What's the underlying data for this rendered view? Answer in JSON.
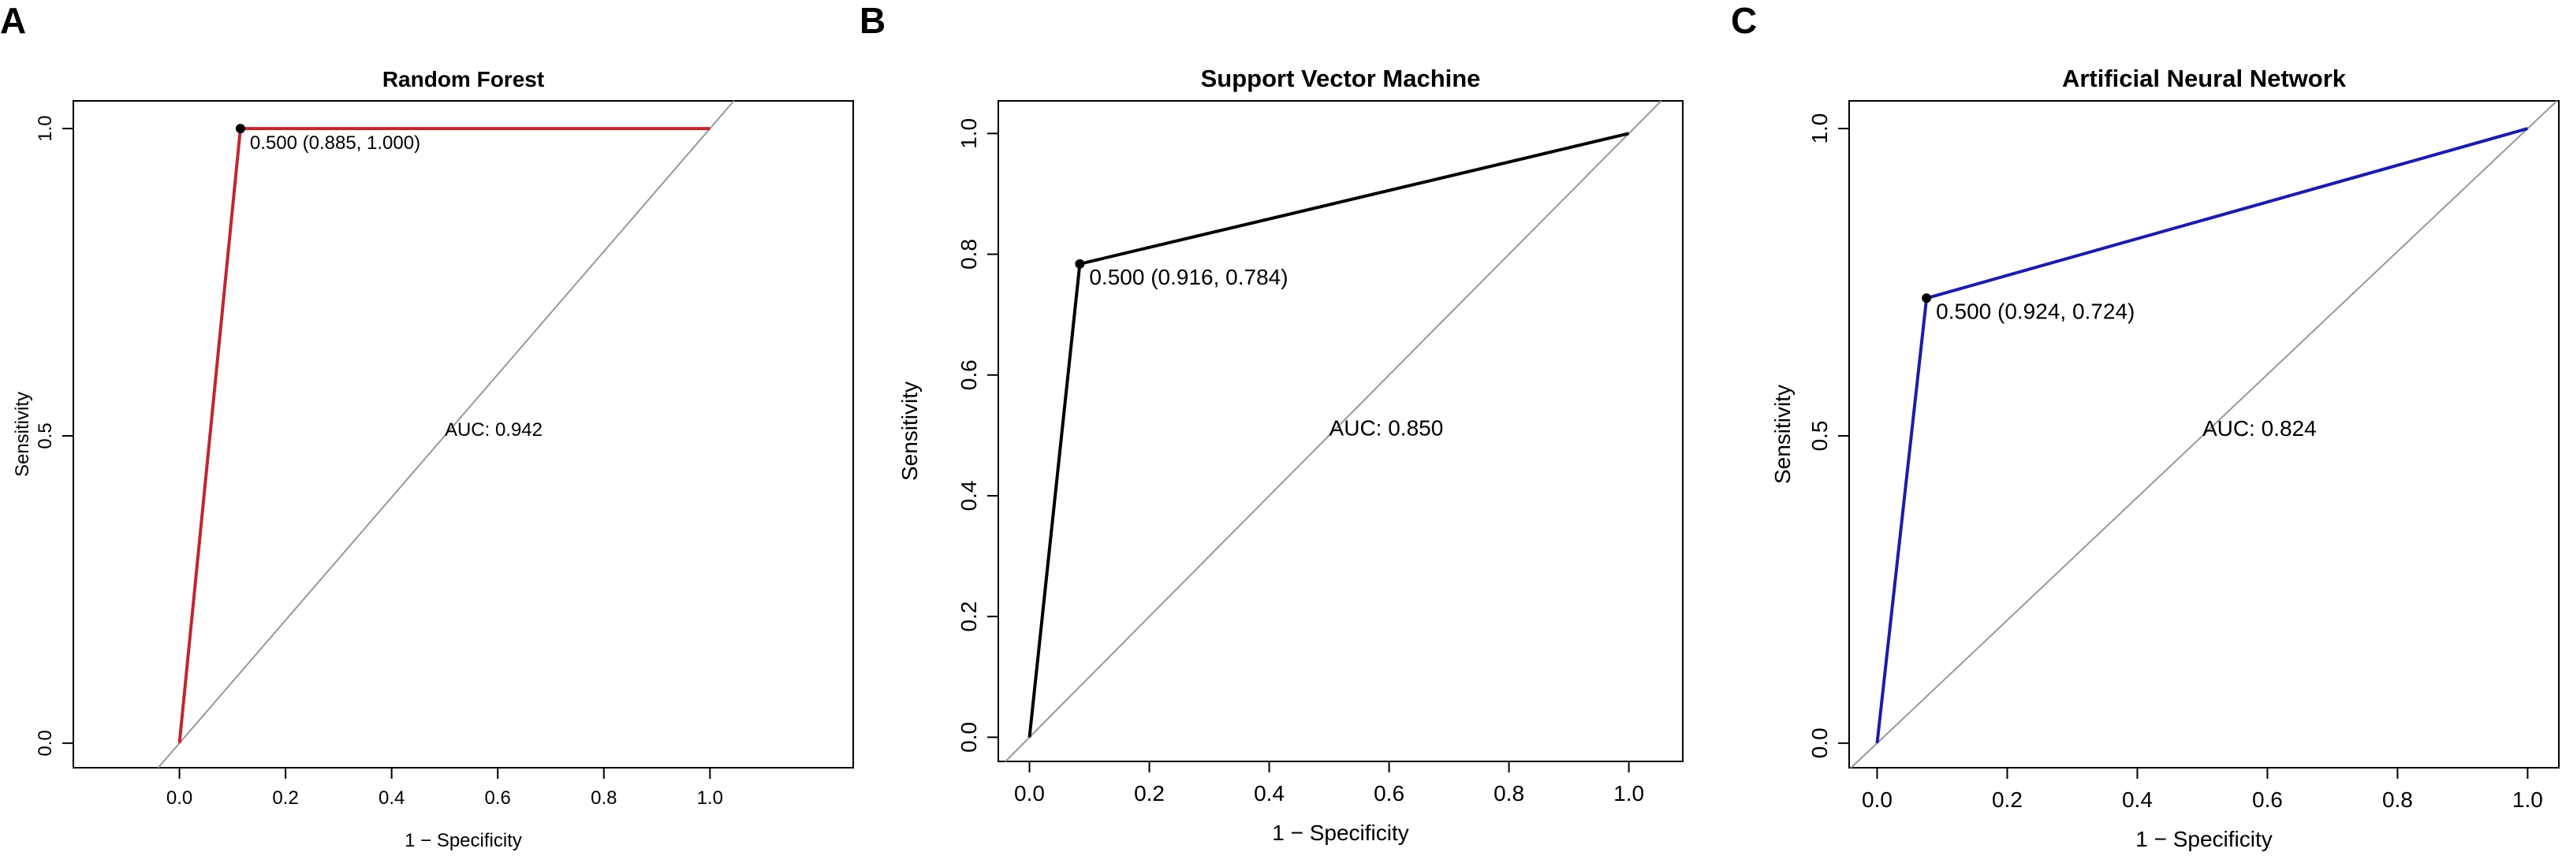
{
  "chart_data": [
    {
      "type": "roc",
      "panel": "A",
      "title": "Random Forest",
      "x_label": "1 − Specificity",
      "y_label": "Sensitivity",
      "x": [
        0,
        0.115,
        1
      ],
      "values": [
        0,
        1,
        1
      ],
      "color": "#c0262d",
      "point": {
        "x": 0.115,
        "y": 1,
        "label": "0.500 (0.885, 1.000)"
      },
      "auc_label": "AUC: 0.942",
      "xlim": [
        -0.2,
        1.27
      ],
      "ylim": [
        -0.04,
        1.045
      ],
      "xticks": [
        {
          "value": 0,
          "label": "0.0"
        },
        {
          "value": 0.2,
          "label": "0.2"
        },
        {
          "value": 0.4,
          "label": "0.4"
        },
        {
          "value": 0.6,
          "label": "0.6"
        },
        {
          "value": 0.8,
          "label": "0.8"
        },
        {
          "value": 1,
          "label": "1.0"
        }
      ],
      "yticks": [
        {
          "value": 0,
          "label": "0.0"
        },
        {
          "value": 0.5,
          "label": "0.5"
        },
        {
          "value": 1,
          "label": "1.0"
        }
      ]
    },
    {
      "type": "roc",
      "panel": "B",
      "title": "Support Vector Machine",
      "x_label": "1 − Specificity",
      "y_label": "Sensitivity",
      "x": [
        0,
        0.084,
        1
      ],
      "values": [
        0,
        0.784,
        1
      ],
      "color": "#000000",
      "point": {
        "x": 0.084,
        "y": 0.784,
        "label": "0.500 (0.916, 0.784)"
      },
      "auc_label": "AUC: 0.850",
      "xlim": [
        -0.052,
        1.09
      ],
      "ylim": [
        -0.04,
        1.054
      ],
      "xticks": [
        {
          "value": 0,
          "label": "0.0"
        },
        {
          "value": 0.2,
          "label": "0.2"
        },
        {
          "value": 0.4,
          "label": "0.4"
        },
        {
          "value": 0.6,
          "label": "0.6"
        },
        {
          "value": 0.8,
          "label": "0.8"
        },
        {
          "value": 1,
          "label": "1.0"
        }
      ],
      "yticks": [
        {
          "value": 0,
          "label": "0.0"
        },
        {
          "value": 0.2,
          "label": "0.2"
        },
        {
          "value": 0.4,
          "label": "0.4"
        },
        {
          "value": 0.6,
          "label": "0.6"
        },
        {
          "value": 0.8,
          "label": "0.8"
        },
        {
          "value": 1,
          "label": "1.0"
        }
      ]
    },
    {
      "type": "roc",
      "panel": "C",
      "title": "Artificial Neural Network",
      "x_label": "1 − Specificity",
      "y_label": "Sensitivity",
      "x": [
        0,
        0.076,
        1
      ],
      "values": [
        0,
        0.724,
        1
      ],
      "color": "#1c1ca8",
      "point": {
        "x": 0.076,
        "y": 0.724,
        "label": "0.500 (0.924, 0.724)"
      },
      "auc_label": "AUC: 0.824",
      "xlim": [
        -0.043,
        1.048
      ],
      "ylim": [
        -0.04,
        1.045
      ],
      "xticks": [
        {
          "value": 0,
          "label": "0.0"
        },
        {
          "value": 0.2,
          "label": "0.2"
        },
        {
          "value": 0.4,
          "label": "0.4"
        },
        {
          "value": 0.6,
          "label": "0.6"
        },
        {
          "value": 0.8,
          "label": "0.8"
        },
        {
          "value": 1,
          "label": "1.0"
        }
      ],
      "yticks": [
        {
          "value": 0,
          "label": "0.0"
        },
        {
          "value": 0.5,
          "label": "0.5"
        },
        {
          "value": 1,
          "label": "1.0"
        }
      ]
    }
  ]
}
